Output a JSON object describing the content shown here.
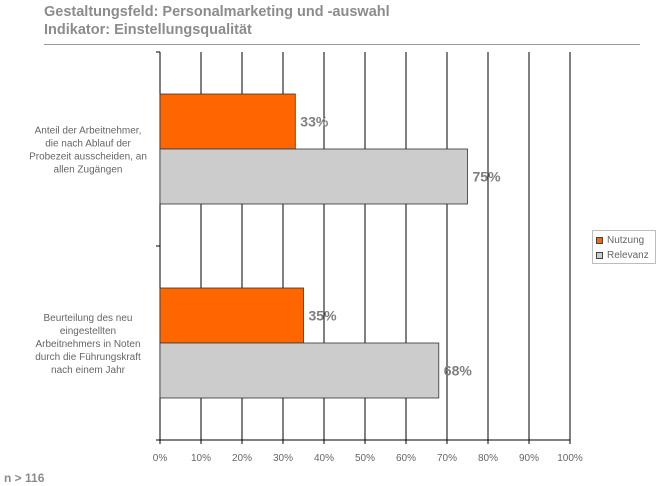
{
  "header": {
    "title": "Gestaltungsfeld: Personalmarketing und -auswahl",
    "subtitle": "Indikator: Einstellungsqualität"
  },
  "footnote": "n > 116",
  "colors": {
    "nutzung": "#ff6600",
    "relevanz": "#cccccc"
  },
  "chart_data": {
    "type": "bar",
    "orientation": "horizontal",
    "categories": [
      "Anteil der Arbeitnehmer, die nach Ablauf der Probezeit ausscheiden, an allen Zugängen",
      "Beurteilung des neu eingestellten Arbeitnehmers in Noten durch die Führungskraft nach einem Jahr"
    ],
    "category_lines": [
      [
        "Anteil der Arbeitnehmer,",
        "die nach Ablauf der",
        "Probezeit ausscheiden, an",
        "allen Zugängen"
      ],
      [
        "Beurteilung des neu",
        "eingestellten",
        "Arbeitnehmers in Noten",
        "durch die Führungskraft",
        "nach einem Jahr"
      ]
    ],
    "series": [
      {
        "name": "Nutzung",
        "values": [
          33,
          35
        ],
        "labels": [
          "33%",
          "35%"
        ]
      },
      {
        "name": "Relevanz",
        "values": [
          75,
          68
        ],
        "labels": [
          "75%",
          "68%"
        ]
      }
    ],
    "xlim": [
      0,
      100
    ],
    "xticks": [
      "0%",
      "10%",
      "20%",
      "30%",
      "40%",
      "50%",
      "60%",
      "70%",
      "80%",
      "90%",
      "100%"
    ],
    "grid": true,
    "legend_position": "right"
  }
}
